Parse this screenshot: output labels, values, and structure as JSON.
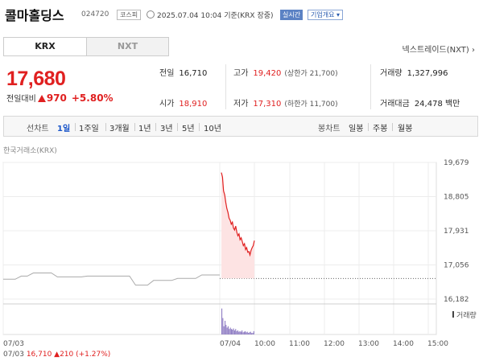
{
  "header": {
    "name": "콜마홀딩스",
    "code": "024720",
    "market": "코스피",
    "timestamp": "2025.07.04 10:04 기준(KRX 장중)",
    "realtime_label": "실시간",
    "overview_label": "기업개요 ▾"
  },
  "tabs": [
    {
      "label": "KRX",
      "active": true
    },
    {
      "label": "NXT",
      "active": false
    }
  ],
  "nextrade_link": "넥스트레이드(NXT) ›",
  "quote": {
    "price": "17,680",
    "change_label": "전일대비",
    "change_amount": "970",
    "change_pct": "+5.80%"
  },
  "stats": {
    "prev_close": {
      "label": "전일",
      "value": "16,710"
    },
    "high": {
      "label": "고가",
      "value": "19,420",
      "sub": "(상한가 21,700)"
    },
    "volume": {
      "label": "거래량",
      "value": "1,327,996"
    },
    "open": {
      "label": "시가",
      "value": "18,910"
    },
    "low": {
      "label": "저가",
      "value": "17,310",
      "sub": "(하한가 11,700)"
    },
    "amount": {
      "label": "거래대금",
      "value": "24,478 백만"
    }
  },
  "period": {
    "line_label": "선차트",
    "line_items": [
      "1일",
      "1주일",
      "3개월",
      "1년",
      "3년",
      "5년",
      "10년"
    ],
    "active": "1일",
    "candle_label": "봉차트",
    "candle_items": [
      "일봉",
      "주봉",
      "월봉"
    ]
  },
  "exchange_label": "한국거래소(KRX)",
  "chart_data": {
    "type": "line",
    "y_ticks": [
      "19,679",
      "18,805",
      "17,931",
      "17,056",
      "16,182"
    ],
    "ylim": [
      16182,
      19679
    ],
    "x_labels": [
      "07/03",
      "07/04",
      "10:00",
      "11:00",
      "12:00",
      "13:00",
      "14:00",
      "15:00"
    ],
    "volume_legend": "거래량",
    "prev_close": 16710,
    "prev_day_series": [
      16690,
      16690,
      16690,
      16770,
      16770,
      16850,
      16850,
      16850,
      16850,
      16750,
      16750,
      16750,
      16750,
      16750,
      16770,
      16770,
      16770,
      16770,
      16770,
      16770,
      16770,
      16770,
      16540,
      16540,
      16540,
      16660,
      16660,
      16660,
      16660,
      16710,
      16710,
      16710,
      16710,
      16800,
      16800,
      16800,
      16800
    ],
    "today_series": [
      19420,
      19300,
      18950,
      18850,
      18650,
      18500,
      18400,
      18250,
      18200,
      18100,
      18150,
      18000,
      17950,
      18050,
      17900,
      17800,
      17850,
      17700,
      17750,
      17650,
      17550,
      17600,
      17450,
      17500,
      17380,
      17400,
      17310,
      17430,
      17500,
      17550,
      17680
    ],
    "today_volume": [
      0.95,
      0.6,
      0.3,
      0.5,
      0.35,
      0.25,
      0.3,
      0.2,
      0.25,
      0.2,
      0.18,
      0.22,
      0.15,
      0.2,
      0.12,
      0.15,
      0.1,
      0.12,
      0.1,
      0.15,
      0.08,
      0.1,
      0.12,
      0.08,
      0.1,
      0.06,
      0.08,
      0.1,
      0.05,
      0.06,
      0.12
    ],
    "colors": {
      "line_prev": "#aaaaaa",
      "line_today": "#e02020",
      "fill_today": "#fde3e3",
      "volume": "#8e7cc3",
      "grid": "#ececec"
    }
  }
}
